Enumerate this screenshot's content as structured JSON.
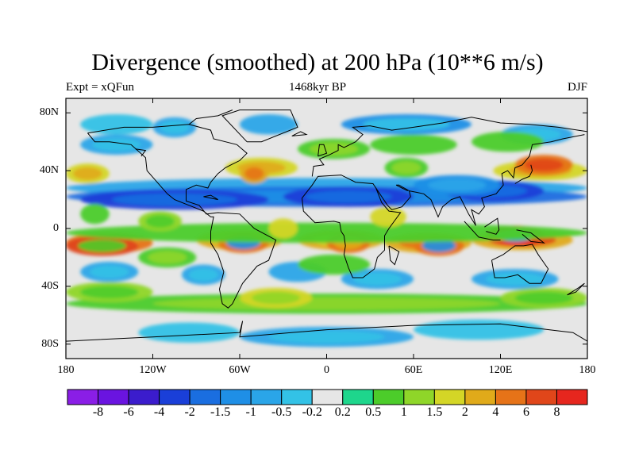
{
  "title": "Divergence (smoothed) at 200 hPa (10**6 m/s)",
  "left_string": "Expt = xQFun",
  "center_string": "1468kyr BP",
  "right_string": "DJF",
  "lat_ticks": [
    "80N",
    "40N",
    "0",
    "40S",
    "80S"
  ],
  "lat_values": [
    80,
    40,
    0,
    -40,
    -80
  ],
  "lon_ticks": [
    "180",
    "120W",
    "60W",
    "0",
    "60E",
    "120E",
    "180"
  ],
  "lon_values": [
    -180,
    -120,
    -60,
    0,
    60,
    120,
    180
  ],
  "colorbar": {
    "labels": [
      "-8",
      "-6",
      "-4",
      "-2",
      "-1.5",
      "-1",
      "-0.5",
      "-0.2",
      "0.2",
      "0.5",
      "1",
      "1.5",
      "2",
      "4",
      "6",
      "8"
    ],
    "colors": [
      "#8a1ee6",
      "#6a14e0",
      "#3b1ccc",
      "#1a3fd8",
      "#1a6ee0",
      "#1f8fe6",
      "#2aa5e8",
      "#33c2e6",
      "#e6e6e6",
      "#1ed68c",
      "#4ccc2a",
      "#8fd629",
      "#d4d626",
      "#e0aa1a",
      "#e67318",
      "#e0461a",
      "#e6261e"
    ]
  },
  "map_colors": {
    "land_line": "#000000",
    "neutral": "#e6e6e6"
  }
}
